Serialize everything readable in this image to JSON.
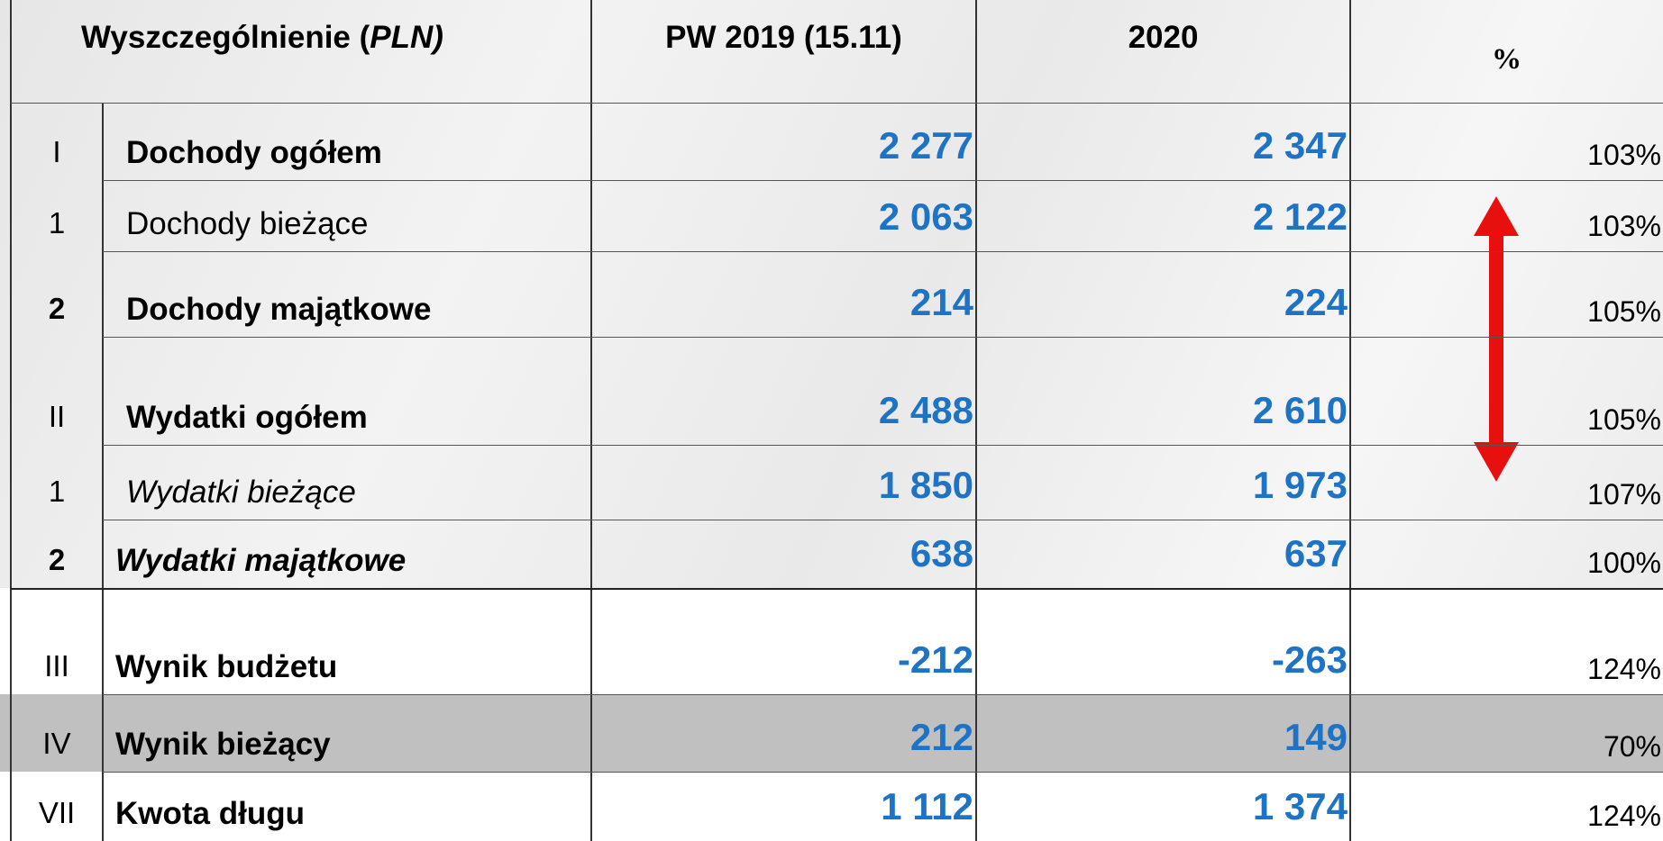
{
  "header": {
    "label": "Wyszczególnienie  (",
    "unit": "PLN)",
    "col_a": "PW 2019  (15.11)",
    "col_b": "2020",
    "col_pct": "%"
  },
  "table": {
    "rows": [
      [
        "I",
        "Dochody ogółem",
        "2 277",
        "2 347",
        "103%"
      ],
      [
        "1",
        "Dochody bieżące",
        "2 063",
        "2 122",
        "103%"
      ],
      [
        "2",
        "Dochody majątkowe",
        "214",
        "224",
        "105%"
      ],
      [
        "II",
        "Wydatki ogółem",
        "2 488",
        "2 610",
        "105%"
      ],
      [
        "1",
        "Wydatki bieżące",
        "1 850",
        "1 973",
        "107%"
      ],
      [
        "2",
        "Wydatki majątkowe",
        "638",
        "637",
        "100%"
      ],
      [
        "III",
        "Wynik budżetu",
        "-212",
        "-263",
        "124%"
      ],
      [
        "IV",
        "Wynik bieżący",
        "212",
        "149",
        "70%"
      ],
      [
        "VII",
        "Kwota długu",
        "1 112",
        "1 374",
        "124%"
      ]
    ]
  }
}
